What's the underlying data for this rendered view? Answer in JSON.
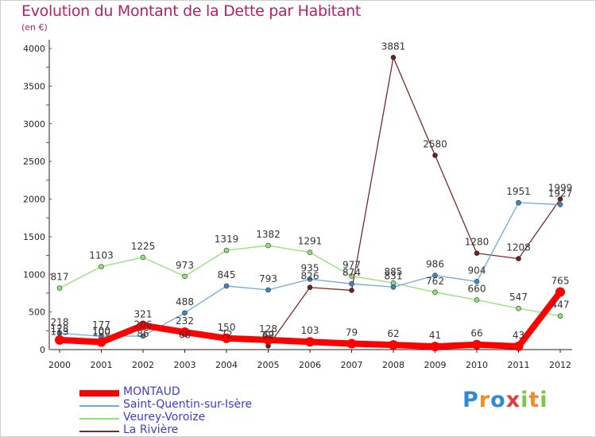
{
  "chart_data": {
    "type": "line",
    "title": "Evolution du Montant de la Dette par Habitant",
    "subtitle": "(en €)",
    "x": [
      "2000",
      "2001",
      "2002",
      "2003",
      "2004",
      "2005",
      "2006",
      "2007",
      "2008",
      "2009",
      "2010",
      "2011",
      "2012"
    ],
    "ylim": [
      0,
      4000
    ],
    "yticks": [
      "0",
      "500",
      "1000",
      "1500",
      "2000",
      "2500",
      "3000",
      "3500",
      "4000"
    ],
    "grid": false,
    "legend_position": "bottom-left",
    "series": [
      {
        "name": "MONTAUD",
        "color": "#ff0000",
        "values": [
          128,
          100,
          321,
          232,
          150,
          128,
          103,
          79,
          62,
          41,
          66,
          43,
          765
        ],
        "labels": [
          "128",
          "100",
          "321",
          "232",
          "150",
          "128",
          "103",
          "79",
          "62",
          "41",
          "66",
          "43",
          "765"
        ]
      },
      {
        "name": "Saint-Quentin-sur-Isère",
        "color": "#6fa8dc",
        "values": [
          218,
          177,
          180,
          488,
          845,
          793,
          935,
          874,
          831,
          986,
          904,
          1951,
          1927
        ],
        "labels": [
          "218",
          "177",
          "",
          "488",
          "845",
          "793",
          "935",
          "874",
          "831",
          "986",
          "904",
          "1951",
          "1927"
        ]
      },
      {
        "name": "Veurey-Voroize",
        "color": "#93e077",
        "values": [
          817,
          1103,
          1225,
          973,
          1319,
          1382,
          1291,
          977,
          885,
          762,
          660,
          547,
          447
        ],
        "labels": [
          "817",
          "1103",
          "1225",
          "973",
          "1319",
          "1382",
          "1291",
          "977",
          "885",
          "762",
          "660",
          "547",
          "447"
        ]
      },
      {
        "name": "La Rivière",
        "color": "#7a2a2a",
        "values": [
          null,
          null,
          null,
          null,
          null,
          49,
          826,
          787,
          3881,
          2580,
          1280,
          1208,
          1999
        ],
        "labels": [
          "",
          "",
          "",
          "",
          "",
          "49",
          "826",
          "",
          "3881",
          "2580",
          "1280",
          "1208",
          "1999"
        ]
      }
    ],
    "extra_labels": [
      "113",
      "100",
      "86",
      "68",
      "206",
      "72",
      "62"
    ]
  },
  "brand": {
    "letters": [
      "P",
      "r",
      "o",
      "x",
      "i",
      "t",
      "i"
    ],
    "colors": [
      "#2e8bd9",
      "#f28c28",
      "#2e8bd9",
      "#e23b3b",
      "#7ac943",
      "#f28c28",
      "#7ac943"
    ]
  }
}
